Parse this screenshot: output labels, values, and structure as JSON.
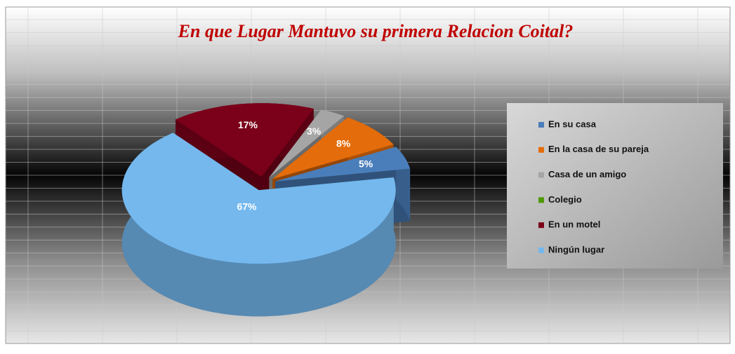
{
  "chart_data": {
    "type": "pie",
    "title": "En que Lugar Mantuvo su primera Relacion Coital?",
    "categories": [
      "En su casa",
      "En la casa de su pareja",
      "Casa de un amigo",
      "Colegio",
      "En un motel",
      "Ningún lugar"
    ],
    "values": [
      5,
      8,
      3,
      0,
      17,
      67
    ],
    "value_labels": [
      "5%",
      "8%",
      "3%",
      null,
      "17%",
      "67%"
    ],
    "colors": [
      "#4a7ebb",
      "#e46c0a",
      "#a5a5a5",
      "#4e9a06",
      "#7b0019",
      "#74b8ee"
    ],
    "legend": "right"
  }
}
